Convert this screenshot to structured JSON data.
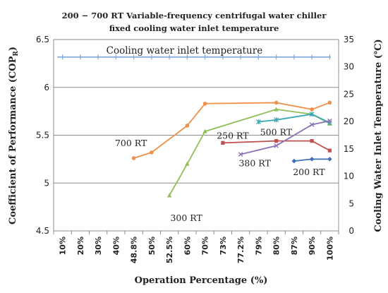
{
  "chart_data": {
    "type": "line",
    "title": [
      "200 − 700 RT Variable-frequency centrifugal water chiller",
      "fixed cooling water inlet temperature"
    ],
    "xlabel": "Operation Percentage (%)",
    "ylabel_left": "Coefficient of Performance (COP",
    "ylabel_left_sub": "R",
    "ylabel_left_close": ")",
    "ylabel_right": "Cooling Water Inlet Temperature (℃)",
    "categories": [
      "10%",
      "20%",
      "30%",
      "40%",
      "48.8%",
      "50%",
      "52.5%",
      "60%",
      "70%",
      "73%",
      "77.2%",
      "79%",
      "80%",
      "87%",
      "90%",
      "100%"
    ],
    "ylim_left": [
      4.5,
      6.5
    ],
    "yticks_left": [
      "6.5",
      "6",
      "5.5",
      "5",
      "4.5"
    ],
    "ylim_right": [
      0,
      35
    ],
    "yticks_right": [
      "35",
      "30",
      "25",
      "20",
      "15",
      "10",
      "5",
      "0"
    ],
    "grid": "horizontal",
    "series": [
      {
        "name": "Cooling water inlet temperature",
        "axis": "right",
        "color": "#7fa8d6",
        "marker": "plus",
        "points": [
          [
            -0.3,
            31.8
          ],
          [
            0,
            31.8
          ],
          [
            1,
            31.8
          ],
          [
            2,
            31.8
          ],
          [
            3,
            31.8
          ],
          [
            4,
            31.8
          ],
          [
            5,
            31.8
          ],
          [
            6,
            31.8
          ],
          [
            7,
            31.8
          ],
          [
            8,
            31.8
          ],
          [
            9,
            31.8
          ],
          [
            10,
            31.8
          ],
          [
            11,
            31.8
          ],
          [
            12,
            31.8
          ],
          [
            13,
            31.8
          ],
          [
            14,
            31.8
          ],
          [
            15,
            31.8
          ]
        ]
      },
      {
        "name": "700 RT",
        "axis": "left",
        "color": "#f0914a",
        "marker": "circle",
        "points": [
          [
            4,
            5.26
          ],
          [
            5,
            5.32
          ],
          [
            7,
            5.6
          ],
          [
            8,
            5.83
          ],
          [
            12,
            5.84
          ],
          [
            14,
            5.77
          ],
          [
            15,
            5.84
          ]
        ]
      },
      {
        "name": "300 RT",
        "axis": "left",
        "color": "#8fbe5a",
        "marker": "triangle",
        "points": [
          [
            6,
            4.87
          ],
          [
            7,
            5.2
          ],
          [
            8,
            5.54
          ],
          [
            12,
            5.77
          ],
          [
            14,
            5.72
          ],
          [
            15,
            5.62
          ]
        ]
      },
      {
        "name": "250 RT",
        "axis": "left",
        "color": "#c0504d",
        "marker": "square",
        "points": [
          [
            9,
            5.42
          ],
          [
            12,
            5.44
          ],
          [
            14,
            5.44
          ],
          [
            15,
            5.34
          ]
        ]
      },
      {
        "name": "500 RT",
        "axis": "left",
        "color": "#3aa7b5",
        "marker": "star",
        "points": [
          [
            11,
            5.64
          ],
          [
            12,
            5.66
          ],
          [
            14,
            5.72
          ],
          [
            15,
            5.63
          ]
        ]
      },
      {
        "name": "380 RT",
        "axis": "left",
        "color": "#8a72b8",
        "marker": "x",
        "points": [
          [
            10,
            5.3
          ],
          [
            12,
            5.39
          ],
          [
            14,
            5.61
          ],
          [
            15,
            5.65
          ]
        ]
      },
      {
        "name": "200 RT",
        "axis": "left",
        "color": "#3f6fb5",
        "marker": "diamond",
        "points": [
          [
            13,
            5.23
          ],
          [
            14,
            5.25
          ],
          [
            15,
            5.25
          ]
        ]
      }
    ],
    "annotations": [
      {
        "text": "Cooling water inlet temperature",
        "series": "Cooling water inlet temperature"
      },
      {
        "text": "700 RT",
        "series": "700 RT"
      },
      {
        "text": "300 RT",
        "series": "300 RT"
      },
      {
        "text": "250 RT",
        "series": "250 RT"
      },
      {
        "text": "500 RT",
        "series": "500 RT"
      },
      {
        "text": "380 RT",
        "series": "380 RT"
      },
      {
        "text": "200 RT",
        "series": "200 RT"
      }
    ]
  }
}
